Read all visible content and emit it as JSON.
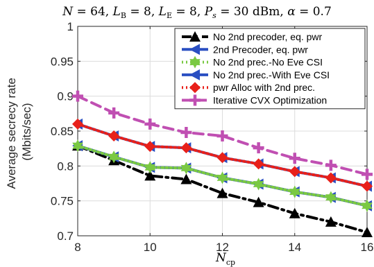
{
  "chart_data": {
    "type": "line",
    "title": "N = 64, L_B = 8, L_E = 8, P_s = 30 dBm, α = 0.7",
    "xlabel": "N_cp",
    "ylabel_line1": "Average secrecy rate",
    "ylabel_line2": "(Mbits/sec)",
    "xlim": [
      8,
      16
    ],
    "ylim": [
      0.7,
      1.0
    ],
    "xticks": [
      8,
      10,
      12,
      14,
      16
    ],
    "yticks": [
      0.7,
      0.75,
      0.8,
      0.85,
      0.9,
      0.95,
      1
    ],
    "ytick_labels": [
      "0.7",
      "0.75",
      "0.8",
      "0.85",
      "0.9",
      "0.95",
      "1"
    ],
    "grid": true,
    "legend_position": "top-right",
    "x": [
      8,
      9,
      10,
      11,
      12,
      13,
      14,
      15,
      16
    ],
    "series": [
      {
        "name": "No 2nd precoder, eq. pwr",
        "color": "#000000",
        "marker": "triangle-up",
        "dash": "dashdot",
        "values": [
          0.829,
          0.808,
          0.786,
          0.781,
          0.761,
          0.748,
          0.732,
          0.72,
          0.705
        ]
      },
      {
        "name": "2nd Precoder, eq. pwr",
        "color": "#2a4fc2",
        "marker": "triangle-left",
        "dash": "solid",
        "values": [
          0.829,
          0.813,
          0.798,
          0.797,
          0.783,
          0.774,
          0.763,
          0.755,
          0.743
        ]
      },
      {
        "name": "No 2nd prec.-No Eve CSI",
        "color": "#7ac943",
        "marker": "hexagram",
        "dash": "dotted",
        "values": [
          0.829,
          0.813,
          0.798,
          0.797,
          0.783,
          0.774,
          0.763,
          0.755,
          0.743
        ]
      },
      {
        "name": "No 2nd prec.-With Eve CSI",
        "color": "#2a4fc2",
        "marker": "triangle-left",
        "dash": "solid",
        "values": [
          0.86,
          0.843,
          0.828,
          0.826,
          0.812,
          0.803,
          0.792,
          0.783,
          0.771
        ]
      },
      {
        "name": "pwr Alloc with 2nd prec.",
        "color": "#e8201a",
        "marker": "diamond",
        "dash": "dotted",
        "values": [
          0.86,
          0.843,
          0.828,
          0.826,
          0.812,
          0.803,
          0.792,
          0.783,
          0.771
        ]
      },
      {
        "name": "Iterative CVX Optimization",
        "color": "#c04fb2",
        "marker": "plus",
        "dash": "dashed",
        "values": [
          0.9,
          0.876,
          0.86,
          0.848,
          0.843,
          0.826,
          0.811,
          0.801,
          0.788
        ]
      }
    ]
  }
}
